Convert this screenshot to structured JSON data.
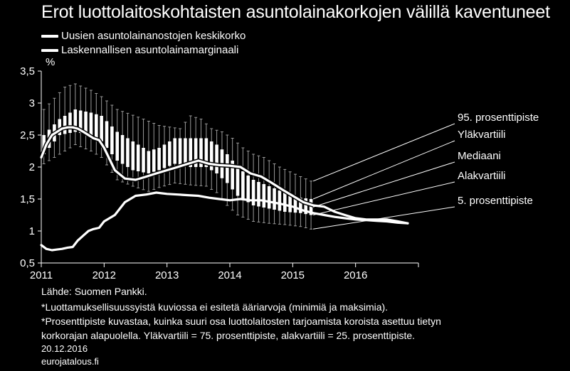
{
  "title": "Erot luottolaitoskohtaisten asuntolainakorkojen välillä kaventuneet",
  "legend": [
    "Uusien asuntolainanostojen keskikorko",
    "Laskennallisen asuntolainamarginaali"
  ],
  "footnotes": {
    "source": "Lähde: Suomen Pankki.",
    "note1": "*Luottamuksellisuussyistä kuviossa ei esitetä ääriarvoja (minimiä ja maksimia).",
    "note2a": "*Prosenttipiste kuvastaa, kuinka suuri osa luottolaitosten tarjoamista koroista asettuu tietyn",
    "note2b": "korkorajan alapuolella. Yläkvartiili = 75. prosenttipiste, alakvartiili = 25. prosenttipiste.",
    "date": "20.12.2016",
    "site": "eurojatalous.fi"
  },
  "colors": {
    "background": "#000000",
    "foreground": "#ffffff",
    "whisker": "#9a9a9a"
  },
  "chart_data": {
    "type": "box",
    "ylabel": "%",
    "ylim": [
      0.5,
      3.5
    ],
    "yticks": [
      "0,5",
      "1",
      "1,5",
      "2",
      "2,5",
      "3",
      "3,5"
    ],
    "ytick_values": [
      0.5,
      1,
      1.5,
      2,
      2.5,
      3,
      3.5
    ],
    "xlim": [
      2011,
      2017
    ],
    "xticks": [
      "2011",
      "2012",
      "2013",
      "2014",
      "2015",
      "2016"
    ],
    "annotations": [
      "95. prosenttipiste",
      "Yläkvartiili",
      "Mediaani",
      "Alakvartiili",
      "5. prosenttipiste"
    ],
    "box_start": 2011.0,
    "box_step": 0.08333,
    "box_count": 52,
    "p95_anchors": [
      [
        0,
        2.9
      ],
      [
        4,
        3.25
      ],
      [
        6,
        3.3
      ],
      [
        9,
        3.2
      ],
      [
        11,
        3.1
      ],
      [
        14,
        2.9
      ],
      [
        19,
        2.75
      ],
      [
        22,
        2.65
      ],
      [
        26,
        2.6
      ],
      [
        28,
        2.8
      ],
      [
        30,
        2.75
      ],
      [
        32,
        2.6
      ],
      [
        34,
        2.55
      ],
      [
        36,
        2.45
      ],
      [
        38,
        2.3
      ],
      [
        40,
        2.2
      ],
      [
        42,
        2.15
      ],
      [
        45,
        2.0
      ],
      [
        49,
        1.85
      ],
      [
        51,
        1.78
      ]
    ],
    "p75_anchors": [
      [
        0,
        2.5
      ],
      [
        3,
        2.75
      ],
      [
        6,
        2.9
      ],
      [
        9,
        2.85
      ],
      [
        11,
        2.8
      ],
      [
        14,
        2.55
      ],
      [
        18,
        2.35
      ],
      [
        20,
        2.25
      ],
      [
        22,
        2.3
      ],
      [
        25,
        2.45
      ],
      [
        28,
        2.45
      ],
      [
        31,
        2.45
      ],
      [
        33,
        2.35
      ],
      [
        35,
        2.2
      ],
      [
        37,
        2.0
      ],
      [
        40,
        1.8
      ],
      [
        43,
        1.7
      ],
      [
        46,
        1.6
      ],
      [
        49,
        1.52
      ],
      [
        51,
        1.5
      ]
    ],
    "p25_anchors": [
      [
        0,
        2.2
      ],
      [
        3,
        2.5
      ],
      [
        6,
        2.55
      ],
      [
        9,
        2.5
      ],
      [
        11,
        2.4
      ],
      [
        14,
        2.1
      ],
      [
        17,
        1.95
      ],
      [
        20,
        1.9
      ],
      [
        22,
        1.95
      ],
      [
        25,
        2.05
      ],
      [
        28,
        2.0
      ],
      [
        31,
        2.0
      ],
      [
        33,
        1.9
      ],
      [
        35,
        1.75
      ],
      [
        37,
        1.55
      ],
      [
        40,
        1.4
      ],
      [
        43,
        1.35
      ],
      [
        46,
        1.3
      ],
      [
        49,
        1.28
      ],
      [
        51,
        1.25
      ]
    ],
    "p5_anchors": [
      [
        0,
        2.05
      ],
      [
        3,
        2.2
      ],
      [
        6,
        2.35
      ],
      [
        9,
        2.25
      ],
      [
        11,
        2.15
      ],
      [
        14,
        1.8
      ],
      [
        17,
        1.7
      ],
      [
        20,
        1.62
      ],
      [
        22,
        1.68
      ],
      [
        25,
        1.75
      ],
      [
        28,
        1.72
      ],
      [
        31,
        1.7
      ],
      [
        33,
        1.6
      ],
      [
        35,
        1.4
      ],
      [
        37,
        1.25
      ],
      [
        40,
        1.15
      ],
      [
        43,
        1.12
      ],
      [
        46,
        1.1
      ],
      [
        49,
        1.07
      ],
      [
        51,
        1.03
      ]
    ],
    "series": [
      {
        "name": "Uusien asuntolainanostojen keskikorko",
        "x": [
          2011.0,
          2011.08,
          2011.17,
          2011.25,
          2011.33,
          2011.42,
          2011.5,
          2011.58,
          2011.67,
          2011.75,
          2011.83,
          2011.92,
          2012.0,
          2012.17,
          2012.33,
          2012.5,
          2012.67,
          2012.83,
          2013.0,
          2013.17,
          2013.33,
          2013.5,
          2013.67,
          2013.83,
          2014.0,
          2014.17,
          2014.33,
          2014.5,
          2014.67,
          2014.83,
          2015.0,
          2015.17,
          2015.33,
          2015.5,
          2015.67,
          2015.83,
          2016.0,
          2016.17,
          2016.33,
          2016.5,
          2016.67,
          2016.83
        ],
        "values": [
          2.15,
          2.35,
          2.5,
          2.55,
          2.6,
          2.62,
          2.62,
          2.6,
          2.55,
          2.5,
          2.45,
          2.42,
          2.3,
          1.95,
          1.82,
          1.8,
          1.85,
          1.9,
          1.95,
          2.0,
          2.05,
          2.1,
          2.05,
          2.03,
          2.02,
          2.0,
          1.9,
          1.85,
          1.75,
          1.65,
          1.55,
          1.45,
          1.4,
          1.38,
          1.3,
          1.25,
          1.2,
          1.18,
          1.18,
          1.18,
          1.15,
          1.12
        ]
      },
      {
        "name": "Laskennallisen asuntolainamarginaali",
        "x": [
          2011.0,
          2011.08,
          2011.17,
          2011.25,
          2011.33,
          2011.42,
          2011.5,
          2011.58,
          2011.67,
          2011.75,
          2011.83,
          2011.92,
          2012.0,
          2012.17,
          2012.33,
          2012.5,
          2012.67,
          2012.83,
          2013.0,
          2013.17,
          2013.33,
          2013.5,
          2013.67,
          2013.83,
          2014.0,
          2014.17,
          2014.33,
          2014.5,
          2014.67,
          2014.83,
          2015.0,
          2015.17,
          2015.33,
          2015.5,
          2015.67,
          2015.83,
          2016.0,
          2016.17,
          2016.33,
          2016.5,
          2016.67,
          2016.83
        ],
        "values": [
          0.78,
          0.72,
          0.7,
          0.71,
          0.72,
          0.74,
          0.75,
          0.85,
          0.93,
          1.0,
          1.03,
          1.05,
          1.15,
          1.25,
          1.45,
          1.55,
          1.57,
          1.6,
          1.58,
          1.57,
          1.56,
          1.55,
          1.52,
          1.5,
          1.48,
          1.5,
          1.48,
          1.48,
          1.45,
          1.42,
          1.38,
          1.32,
          1.28,
          1.25,
          1.22,
          1.2,
          1.18,
          1.17,
          1.16,
          1.15,
          1.13,
          1.12
        ]
      }
    ]
  }
}
